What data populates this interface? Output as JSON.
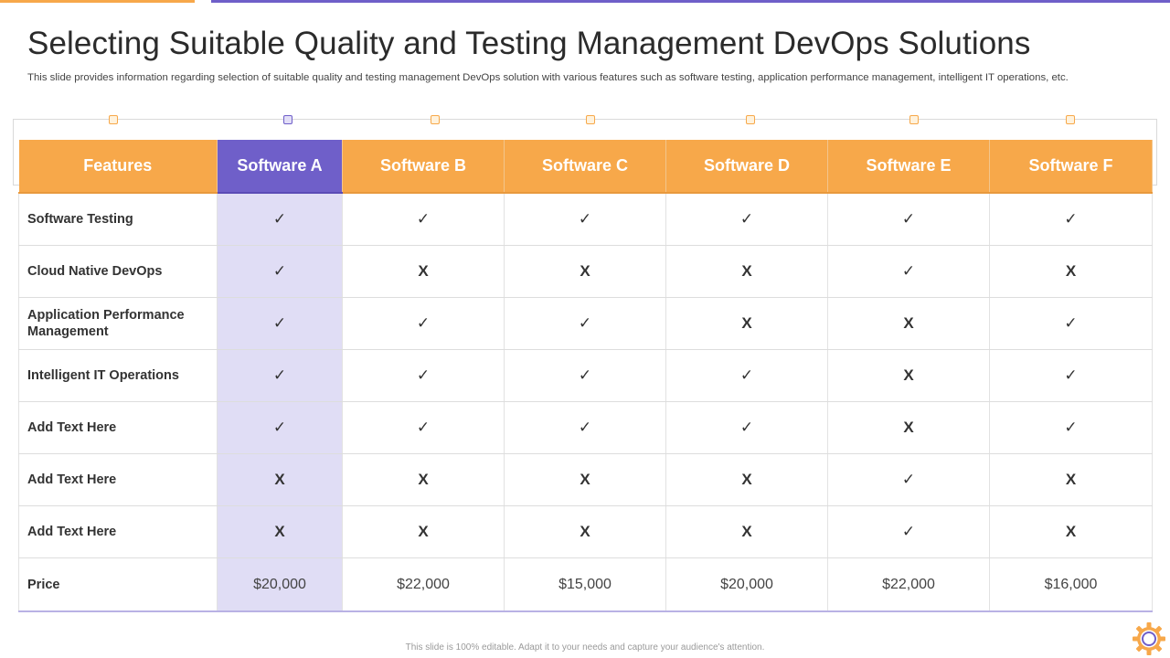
{
  "title": "Selecting Suitable Quality and Testing Management DevOps Solutions",
  "subtitle": "This slide provides information regarding selection of suitable quality and testing management DevOps solution with various features such as software testing, application performance management, intelligent IT operations, etc.",
  "table": {
    "headers": [
      "Features",
      "Software A",
      "Software B",
      "Software C",
      "Software D",
      "Software E",
      "Software F"
    ],
    "highlight_column": 1,
    "rows": [
      {
        "feature": "Software Testing",
        "values": [
          "✓",
          "✓",
          "✓",
          "✓",
          "✓",
          "✓"
        ]
      },
      {
        "feature": "Cloud Native DevOps",
        "values": [
          "✓",
          "X",
          "X",
          "X",
          "✓",
          "X"
        ]
      },
      {
        "feature": "Application Performance Management",
        "values": [
          "✓",
          "✓",
          "✓",
          "X",
          "X",
          "✓"
        ]
      },
      {
        "feature": "Intelligent IT Operations",
        "values": [
          "✓",
          "✓",
          "✓",
          "✓",
          "X",
          "✓"
        ]
      },
      {
        "feature": "Add Text Here",
        "values": [
          "✓",
          "✓",
          "✓",
          "✓",
          "X",
          "✓"
        ]
      },
      {
        "feature": "Add Text Here",
        "values": [
          "X",
          "X",
          "X",
          "X",
          "✓",
          "X"
        ]
      },
      {
        "feature": "Add Text Here",
        "values": [
          "X",
          "X",
          "X",
          "X",
          "✓",
          "X"
        ]
      }
    ],
    "price": {
      "label": "Price",
      "values": [
        "$20,000",
        "$22,000",
        "$15,000",
        "$20,000",
        "$22,000",
        "$16,000"
      ]
    }
  },
  "footer": "This slide is 100% editable. Adapt it to your needs and capture your audience's attention.",
  "colors": {
    "accent_orange": "#f7a84a",
    "accent_purple": "#6f5fc9",
    "highlight_column_bg": "#e0ddf5"
  },
  "icons": {
    "logo": "gear-logo-icon"
  }
}
